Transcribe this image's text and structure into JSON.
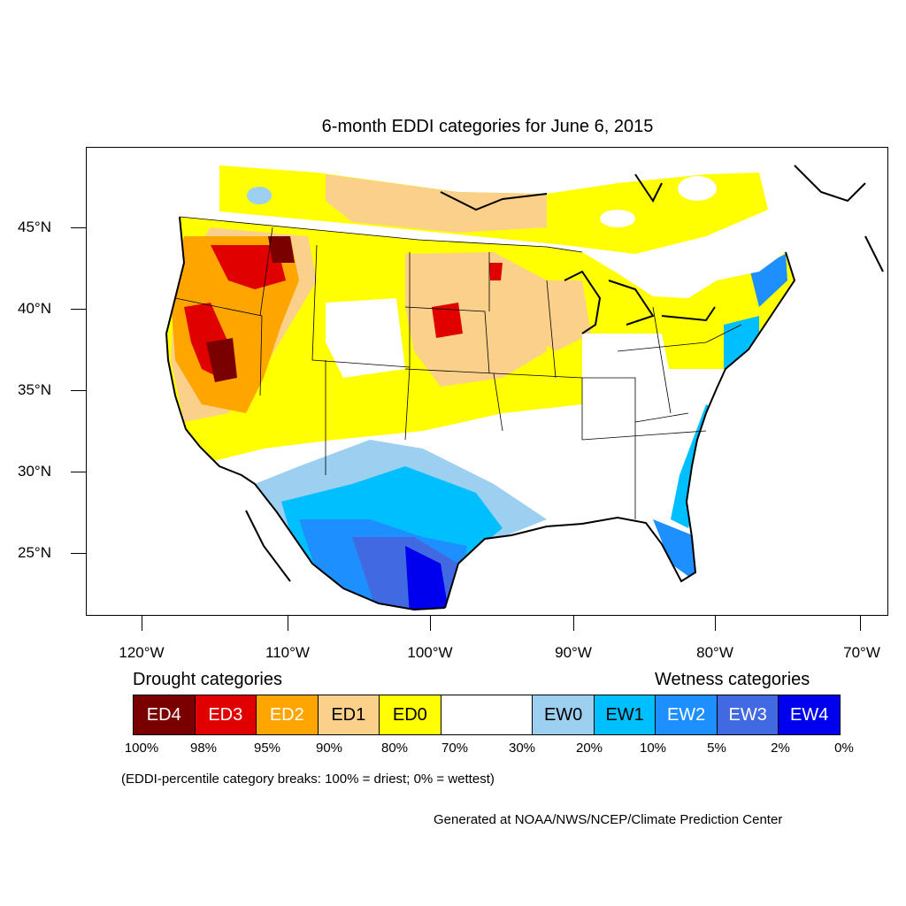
{
  "title": "6-month EDDI categories for June 6, 2015",
  "axes": {
    "latitude_labels": [
      "45°N",
      "40°N",
      "35°N",
      "30°N",
      "25°N"
    ],
    "longitude_labels": [
      "120°W",
      "110°W",
      "100°W",
      "90°W",
      "80°W",
      "70°W"
    ]
  },
  "legend": {
    "drought_heading": "Drought categories",
    "wetness_heading": "Wetness categories",
    "categories": [
      {
        "label": "ED4",
        "color": "#7a0000",
        "text_color": "#ffffff"
      },
      {
        "label": "ED3",
        "color": "#e00000",
        "text_color": "#ffffff"
      },
      {
        "label": "ED2",
        "color": "#ffa500",
        "text_color": "#ffffff"
      },
      {
        "label": "ED1",
        "color": "#fad08a",
        "text_color": "#000000"
      },
      {
        "label": "ED0",
        "color": "#ffff00",
        "text_color": "#000000"
      },
      {
        "label": "",
        "color": "#ffffff",
        "text_color": "#000000"
      },
      {
        "label": "EW0",
        "color": "#9ccff0",
        "text_color": "#000000"
      },
      {
        "label": "EW1",
        "color": "#00bfff",
        "text_color": "#000000"
      },
      {
        "label": "EW2",
        "color": "#1e8fff",
        "text_color": "#ffffff"
      },
      {
        "label": "EW3",
        "color": "#4169e1",
        "text_color": "#ffffff"
      },
      {
        "label": "EW4",
        "color": "#0000ee",
        "text_color": "#ffffff"
      }
    ],
    "breaks": [
      "100%",
      "98%",
      "95%",
      "90%",
      "80%",
      "70%",
      "30%",
      "20%",
      "10%",
      "5%",
      "2%",
      "0%"
    ]
  },
  "note": "(EDDI-percentile category breaks: 100% = driest; 0% = wettest)",
  "credit": "Generated at NOAA/NWS/NCEP/Climate Prediction Center"
}
